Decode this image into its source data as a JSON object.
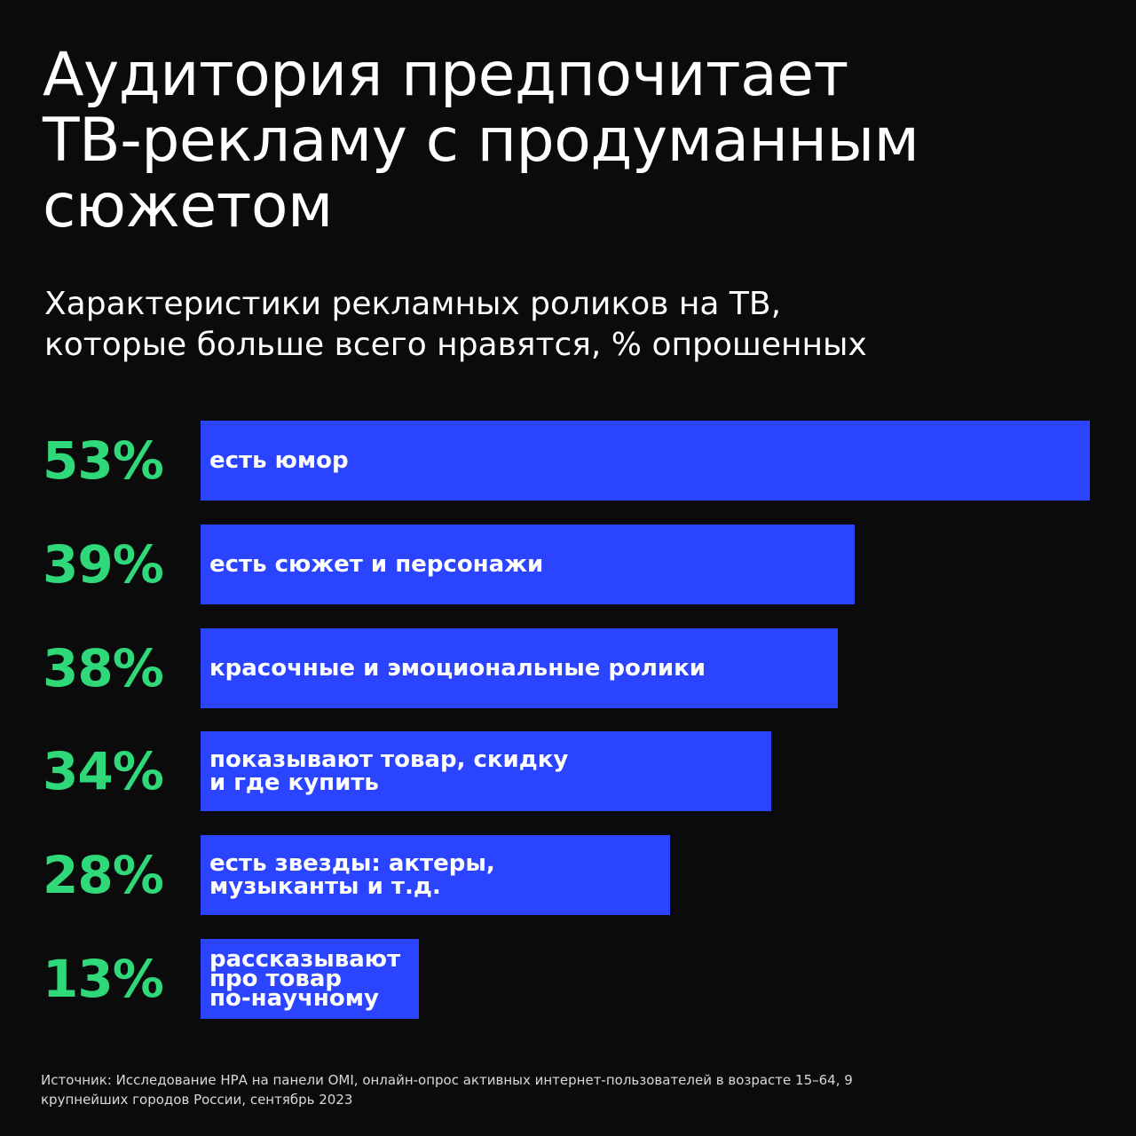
{
  "title_lines": [
    "Аудитория предпочитает",
    "ТВ-рекламу с продуманным",
    "сюжетом"
  ],
  "subtitle_lines": [
    "Характеристики рекламных роликов на ТВ,",
    "которые больше всего нравятся, % опрошенных"
  ],
  "source_lines": [
    "Источник: Исследование НРА на панели OMI, онлайн-опрос активных интернет-пользователей в возрасте 15–64, 9",
    "крупнейших городов России, сентябрь 2023"
  ],
  "colors": {
    "background": "#0b0b0b",
    "bar": "#2b44ff",
    "percent": "#2fd97a",
    "text": "#ffffff"
  },
  "chart_data": {
    "type": "bar",
    "orientation": "horizontal",
    "categories": [
      "есть юмор",
      "есть сюжет и персонажи",
      "красочные и эмоциональные ролики",
      "показывают товар, скидку\nи где купить",
      "есть звезды: актеры,\nмузыканты и т.д.",
      "рассказывают\nпро товар\nпо-научному"
    ],
    "values": [
      53,
      39,
      38,
      34,
      28,
      13
    ],
    "value_labels": [
      "53%",
      "39%",
      "38%",
      "34%",
      "28%",
      "13%"
    ],
    "unit": "%",
    "xlim": [
      0,
      53
    ],
    "grid": false,
    "legend": "none"
  }
}
